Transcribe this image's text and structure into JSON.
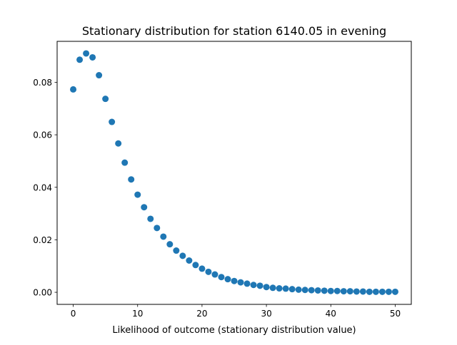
{
  "chart_data": {
    "type": "scatter",
    "title": "Stationary distribution for station 6140.05 in evening",
    "xlabel": "Likelihood of outcome (stationary distribution value)",
    "ylabel": "",
    "xlim": [
      -2.5,
      52.5
    ],
    "ylim": [
      -0.0046,
      0.0956
    ],
    "xticks": [
      0,
      10,
      20,
      30,
      40,
      50
    ],
    "xtick_labels": [
      "0",
      "10",
      "20",
      "30",
      "40",
      "50"
    ],
    "yticks": [
      0.0,
      0.02,
      0.04,
      0.06,
      0.08
    ],
    "ytick_labels": [
      "0.00",
      "0.02",
      "0.04",
      "0.06",
      "0.08"
    ],
    "grid": false,
    "legend": "none",
    "marker_color": "#1f77b4",
    "series": [
      {
        "x": [
          0,
          1,
          2,
          3,
          4,
          5,
          6,
          7,
          8,
          9,
          10,
          11,
          12,
          13,
          14,
          15,
          16,
          17,
          18,
          19,
          20,
          21,
          22,
          23,
          24,
          25,
          26,
          27,
          28,
          29,
          30,
          31,
          32,
          33,
          34,
          35,
          36,
          37,
          38,
          39,
          40,
          41,
          42,
          43,
          44,
          45,
          46,
          47,
          48,
          49,
          50
        ],
        "y": [
          0.0773,
          0.0886,
          0.091,
          0.0895,
          0.0827,
          0.0737,
          0.0649,
          0.0567,
          0.0494,
          0.043,
          0.0372,
          0.0324,
          0.028,
          0.0245,
          0.0212,
          0.0183,
          0.0159,
          0.0139,
          0.0121,
          0.0104,
          0.009,
          0.0078,
          0.0068,
          0.0058,
          0.005,
          0.0043,
          0.0038,
          0.0033,
          0.0028,
          0.0025,
          0.002,
          0.0017,
          0.0015,
          0.0014,
          0.0012,
          0.001,
          0.0009,
          0.0008,
          0.0007,
          0.0006,
          0.0005,
          0.0005,
          0.0004,
          0.0004,
          0.0003,
          0.0003,
          0.0002,
          0.0002,
          0.0002,
          0.0002,
          0.0002
        ]
      }
    ]
  }
}
